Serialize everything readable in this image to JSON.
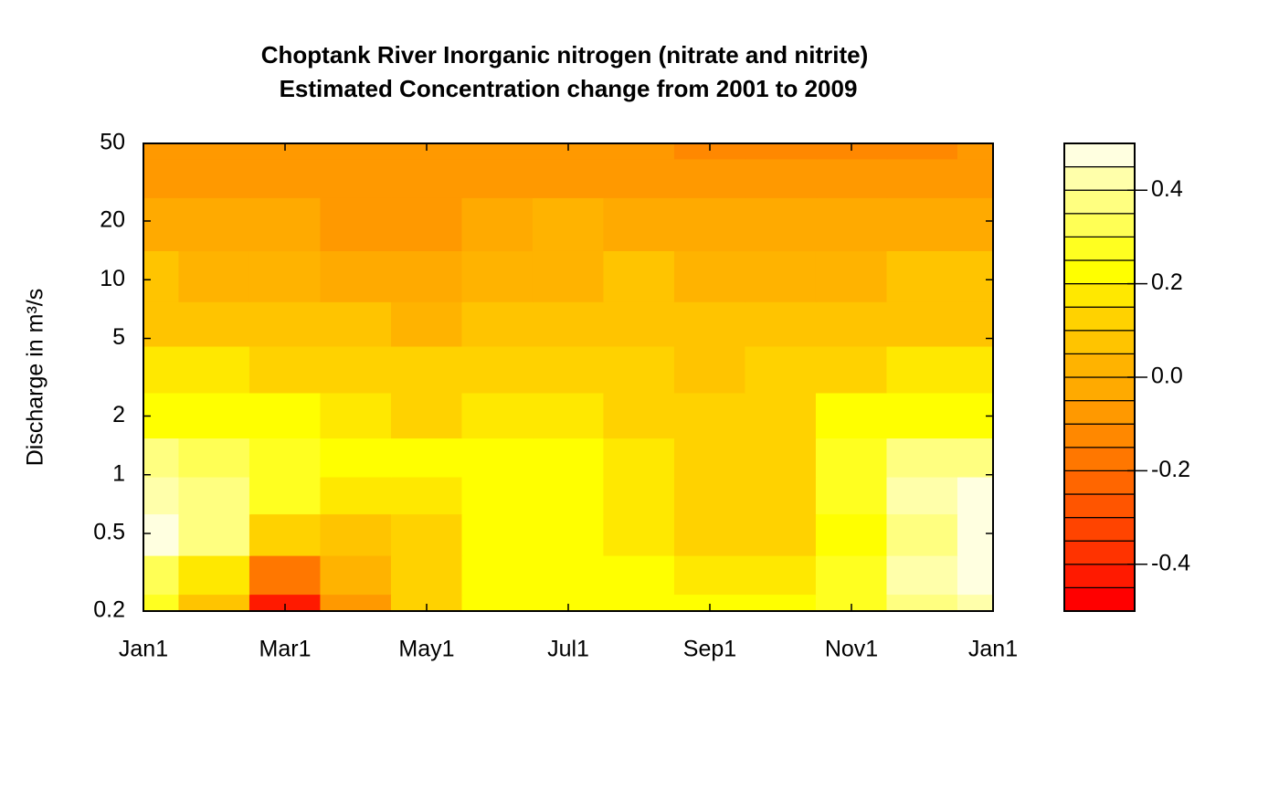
{
  "chart_data": {
    "type": "contour",
    "title": "Choptank River   Inorganic nitrogen (nitrate and nitrite)",
    "subtitle": "Estimated Concentration change from 2001 to 2009",
    "ylabel": "Discharge in m³/s",
    "x": [
      0,
      1,
      2,
      3,
      4,
      5,
      6,
      7,
      8,
      9,
      10,
      11,
      12
    ],
    "xlim": [
      0,
      12
    ],
    "xticks": [
      {
        "value": 0,
        "label": "Jan1"
      },
      {
        "value": 2,
        "label": "Mar1"
      },
      {
        "value": 4,
        "label": "May1"
      },
      {
        "value": 6,
        "label": "Jul1"
      },
      {
        "value": 8,
        "label": "Sep1"
      },
      {
        "value": 10,
        "label": "Nov1"
      },
      {
        "value": 12,
        "label": "Jan1"
      }
    ],
    "y": [
      0.2,
      0.3,
      0.5,
      0.8,
      1.2,
      2,
      3.5,
      6,
      10,
      20,
      35,
      50
    ],
    "ylim": [
      0.2,
      50
    ],
    "yticks": [
      0.2,
      0.5,
      1,
      2,
      5,
      10,
      20,
      50
    ],
    "ylog": true,
    "z": [
      [
        0.25,
        0.05,
        -0.42,
        -0.1,
        0.12,
        0.22,
        0.22,
        0.22,
        0.21,
        0.2,
        0.28,
        0.36,
        0.42
      ],
      [
        0.3,
        0.15,
        -0.2,
        0.0,
        0.12,
        0.22,
        0.22,
        0.2,
        0.16,
        0.16,
        0.26,
        0.4,
        0.46
      ],
      [
        0.45,
        0.35,
        0.1,
        0.05,
        0.12,
        0.22,
        0.22,
        0.18,
        0.12,
        0.12,
        0.22,
        0.38,
        0.48
      ],
      [
        0.42,
        0.38,
        0.25,
        0.18,
        0.18,
        0.22,
        0.22,
        0.16,
        0.1,
        0.12,
        0.28,
        0.42,
        0.45
      ],
      [
        0.35,
        0.33,
        0.25,
        0.22,
        0.22,
        0.22,
        0.22,
        0.15,
        0.1,
        0.12,
        0.28,
        0.35,
        0.36
      ],
      [
        0.22,
        0.22,
        0.2,
        0.16,
        0.14,
        0.16,
        0.17,
        0.14,
        0.1,
        0.12,
        0.2,
        0.24,
        0.24
      ],
      [
        0.16,
        0.16,
        0.14,
        0.12,
        0.1,
        0.11,
        0.12,
        0.11,
        0.09,
        0.1,
        0.14,
        0.16,
        0.16
      ],
      [
        0.09,
        0.08,
        0.06,
        0.05,
        0.04,
        0.05,
        0.07,
        0.08,
        0.07,
        0.07,
        0.08,
        0.09,
        0.09
      ],
      [
        0.05,
        0.04,
        0.01,
        -0.01,
        -0.02,
        0.0,
        0.04,
        0.05,
        0.04,
        0.04,
        0.04,
        0.05,
        0.05
      ],
      [
        -0.01,
        -0.02,
        -0.04,
        -0.06,
        -0.06,
        -0.04,
        0.0,
        -0.01,
        -0.02,
        -0.03,
        -0.03,
        -0.02,
        -0.01
      ],
      [
        -0.06,
        -0.06,
        -0.07,
        -0.07,
        -0.07,
        -0.06,
        -0.06,
        -0.07,
        -0.09,
        -0.1,
        -0.1,
        -0.08,
        -0.06
      ],
      [
        -0.08,
        -0.08,
        -0.07,
        -0.07,
        -0.07,
        -0.08,
        -0.08,
        -0.1,
        -0.12,
        -0.13,
        -0.13,
        -0.11,
        -0.09
      ]
    ],
    "zlim": [
      -0.5,
      0.5
    ],
    "zticks": [
      -0.4,
      -0.2,
      {
        "value": 0,
        "label": "0.0"
      },
      0.2,
      0.4
    ],
    "colors": [
      "#FF0000",
      "#FF1A00",
      "#FF3300",
      "#FF4400",
      "#FF5500",
      "#FF6600",
      "#FF7700",
      "#FF8800",
      "#FF9900",
      "#FFAA00",
      "#FFB300",
      "#FFC400",
      "#FFD200",
      "#FFE800",
      "#FFFF00",
      "#FFFF20",
      "#FFFF55",
      "#FFFF80",
      "#FFFFAA",
      "#FFFFE0"
    ]
  }
}
